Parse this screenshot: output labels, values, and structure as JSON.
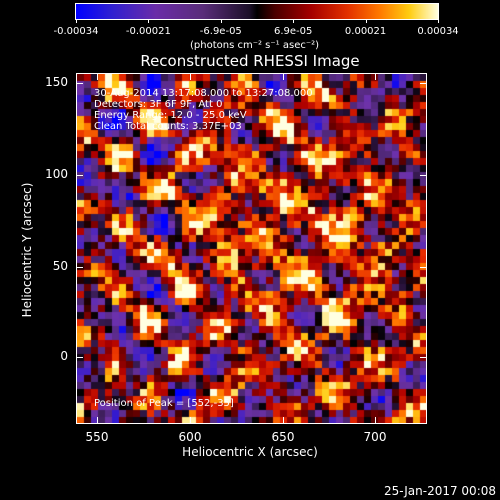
{
  "colorbar": {
    "tick_labels": [
      "-0.00034",
      "-0.00021",
      "-6.9e-05",
      "6.9e-05",
      "0.00021",
      "0.00034"
    ],
    "units": "(photons cm⁻² s⁻¹ asec⁻²)"
  },
  "title": "Reconstructed RHESSI Image",
  "annotations": {
    "line1": "30-Aug-2014 13:17:08.000 to 13:27:08.000",
    "line2": "Detectors: 3F 6F 9F, Att 0",
    "line3": "Energy Range: 12.0 - 25.0 keV",
    "line4": "Clean     Total counts: 3.37E+03",
    "peak": "Position of Peak = [552,-35]"
  },
  "axes": {
    "x_title": "Heliocentric X (arcsec)",
    "y_title": "Heliocentric Y (arcsec)",
    "x_ticks": [
      "550",
      "600",
      "650",
      "700"
    ],
    "y_ticks": [
      "150",
      "100",
      "50",
      "0"
    ],
    "x_range": [
      540,
      728
    ],
    "y_range": [
      -42,
      155
    ]
  },
  "datestamp": "25-Jan-2017 00:08",
  "colors": {
    "background": "#000000",
    "foreground": "#ffffff"
  }
}
